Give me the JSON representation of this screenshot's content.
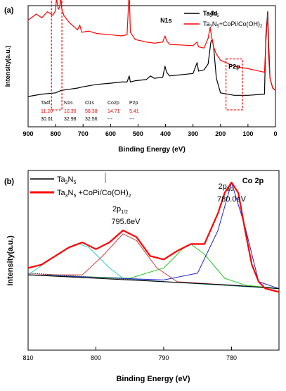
{
  "colors": {
    "black_series": "#000000",
    "red_series": "#ff0000",
    "fit_cyan": "#33cccc",
    "fit_green": "#22cc22",
    "fit_blue": "#2222cc",
    "fit_pink": "#cc4444",
    "fit_background": "#444444",
    "annot_box": "#ff0000"
  },
  "chart_data": [
    {
      "type": "line",
      "panel_label": "(a)",
      "xlabel": "Binding Energy (eV)",
      "ylabel": "Intensity(a.u.)",
      "xlim": [
        900,
        0
      ],
      "x_ticks": [
        "900",
        "800",
        "700",
        "600",
        "500",
        "400",
        "300",
        "200",
        "100",
        "0"
      ],
      "x_tick_values": [
        900,
        800,
        700,
        600,
        500,
        400,
        300,
        200,
        100,
        0
      ],
      "ylim": [
        0,
        100
      ],
      "grid": false,
      "legend_position": "top-right",
      "series": [
        {
          "name": "Ta3N5",
          "legend_main": "Ta",
          "legend_sub1": "3",
          "legend_mid": "N",
          "legend_sub2": "5",
          "legend_tail": "",
          "color": "#000000",
          "x": [
            900,
            850,
            800,
            790,
            780,
            750,
            720,
            700,
            650,
            600,
            560,
            540,
            532,
            528,
            510,
            470,
            455,
            440,
            410,
            402,
            396,
            385,
            300,
            285,
            280,
            260,
            245,
            235,
            230,
            225,
            215,
            200,
            150,
            100,
            40,
            35,
            28,
            25,
            20,
            10,
            0
          ],
          "y": [
            25,
            27,
            28,
            29,
            30,
            31,
            32,
            33,
            35,
            36,
            37,
            37,
            42,
            37,
            38,
            39,
            42,
            40,
            41,
            50,
            45,
            42,
            44,
            53,
            46,
            47,
            52,
            70,
            72,
            66,
            40,
            28,
            26,
            26,
            27,
            75,
            95,
            70,
            40,
            32,
            30
          ]
        },
        {
          "name": "Ta3N5+CoPi/Co(OH)2",
          "legend_main": "Ta",
          "legend_sub1": "3",
          "legend_mid": "N",
          "legend_sub2": "5",
          "legend_tail": "+CoPi/Co(OH)",
          "legend_sub3": "2",
          "color": "#ff0000",
          "x": [
            900,
            870,
            850,
            830,
            810,
            800,
            797,
            790,
            785,
            781,
            778,
            770,
            750,
            720,
            712,
            705,
            680,
            650,
            600,
            560,
            540,
            532,
            528,
            510,
            470,
            440,
            410,
            402,
            396,
            385,
            300,
            285,
            280,
            260,
            245,
            238,
            232,
            225,
            215,
            200,
            150,
            100,
            40,
            35,
            28,
            25,
            20,
            10,
            0
          ],
          "y": [
            88,
            93,
            90,
            95,
            92,
            96,
            106,
            97,
            99,
            108,
            98,
            92,
            86,
            80,
            84,
            78,
            79,
            77,
            76,
            75,
            76,
            112,
            78,
            72,
            70,
            69,
            70,
            75,
            71,
            68,
            67,
            70,
            66,
            65,
            73,
            82,
            74,
            66,
            60,
            55,
            50,
            48,
            45,
            70,
            93,
            60,
            40,
            32,
            30
          ]
        }
      ],
      "peak_labels": [
        {
          "text": "Co2p",
          "x": 795,
          "y": 113
        },
        {
          "text": "O1s",
          "x": 540,
          "y": 106
        },
        {
          "text": "N1s",
          "x": 398,
          "y": 86
        },
        {
          "text": "Ta4d",
          "x": 238,
          "y": 92
        },
        {
          "text": "Ta4f",
          "x": 25,
          "y": 106
        },
        {
          "text": "P2p",
          "x": 150,
          "y": 48
        }
      ],
      "dashed_boxes": [
        {
          "x_from": 815,
          "x_to": 777,
          "y_from": 14,
          "y_to": 118
        },
        {
          "x_from": 180,
          "x_to": 120,
          "y_from": 14,
          "y_to": 56
        }
      ],
      "table": {
        "headers": [
          "Ta4f",
          "N1s",
          "O1s",
          "Co2p",
          "P2p"
        ],
        "rows": [
          {
            "color": "#ff0000",
            "values": [
              "11.20",
              "10.30",
              "58.38",
              "14.71",
              "5.41"
            ]
          },
          {
            "color": "#000000",
            "values": [
              "30.01",
              "32.98",
              "32.56",
              "---",
              "---"
            ]
          }
        ]
      }
    },
    {
      "type": "line",
      "panel_label": "(b)",
      "title": "Co 2p",
      "xlabel": "Binding Energy (eV)",
      "ylabel": "Intensity(a.u.)",
      "xlim": [
        810,
        773
      ],
      "x_ticks": [
        "810",
        "800",
        "790",
        "780"
      ],
      "x_tick_values": [
        810,
        800,
        790,
        780
      ],
      "ylim": [
        0,
        105
      ],
      "grid": false,
      "legend_position": "top-left",
      "series": [
        {
          "name": "Ta3N5",
          "legend_main": "Ta",
          "legend_sub1": "3",
          "legend_mid": "N",
          "legend_sub2": "5",
          "legend_tail": "",
          "color": "#000000",
          "x": [
            810,
            800,
            790,
            780,
            773
          ],
          "y": [
            44,
            42,
            40,
            38,
            36
          ]
        },
        {
          "name": "Ta3N5 +CoPi/Co(OH)2",
          "legend_main": "Ta",
          "legend_sub1": "3",
          "legend_mid": "N",
          "legend_sub2": "5",
          "legend_tail": " +CoPi/Co(OH)",
          "legend_sub3": "2",
          "color": "#ff0000",
          "x": [
            810,
            808,
            806,
            804,
            802,
            800,
            798,
            796,
            794,
            792,
            790,
            788,
            786,
            784,
            782,
            781,
            780,
            779,
            778,
            777,
            776,
            775,
            774,
            773
          ],
          "y": [
            48,
            50,
            55,
            60,
            63,
            59,
            63,
            70,
            66,
            55,
            53,
            58,
            62,
            62,
            80,
            92,
            98,
            92,
            70,
            50,
            40,
            36,
            35,
            34
          ]
        }
      ],
      "fit_components": [
        {
          "name": "satellite-cyan",
          "color": "#33cccc",
          "x": [
            810,
            806,
            803,
            802.5,
            801,
            798,
            796,
            790,
            773
          ],
          "y": [
            44,
            55,
            62,
            62,
            60,
            48,
            42,
            40,
            36
          ]
        },
        {
          "name": "2p1/2-pink",
          "color": "#cc4444",
          "x": [
            810,
            802,
            799,
            796,
            794,
            791,
            788,
            780,
            773
          ],
          "y": [
            44,
            44,
            55,
            68,
            64,
            48,
            40,
            38,
            36
          ]
        },
        {
          "name": "satellite-green",
          "color": "#22cc22",
          "x": [
            810,
            795,
            790,
            787,
            786,
            784,
            781,
            778,
            773
          ],
          "y": [
            44,
            42,
            48,
            60,
            62,
            56,
            42,
            38,
            36
          ]
        },
        {
          "name": "2p3/2-blue",
          "color": "#2222cc",
          "x": [
            810,
            790,
            785,
            782,
            780,
            778,
            776,
            773
          ],
          "y": [
            44,
            41,
            45,
            70,
            98,
            72,
            40,
            36
          ]
        },
        {
          "name": "background",
          "color": "#444444",
          "x": [
            810,
            773
          ],
          "y": [
            45,
            36
          ]
        }
      ],
      "annotations": [
        {
          "label_main": "2p",
          "label_sub": "1/2",
          "value": "795.6eV",
          "x": 795.6
        },
        {
          "label_main": "2p",
          "label_sub": "3/2",
          "value": "780.0eV",
          "x": 780.0
        }
      ]
    }
  ]
}
